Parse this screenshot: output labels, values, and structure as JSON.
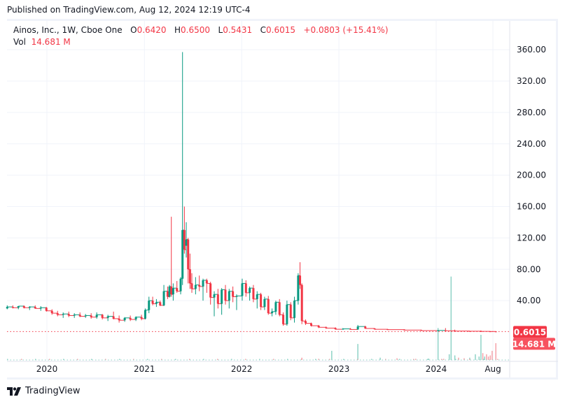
{
  "header": {
    "published": "Published on TradingView.com, Aug 12, 2024 12:19 UTC-4"
  },
  "legend": {
    "symbol": "Ainos, Inc., 1W, Cboe One",
    "o_label": "O",
    "o": "0.6420",
    "h_label": "H",
    "h": "0.6500",
    "l_label": "L",
    "l": "0.5431",
    "c_label": "C",
    "c": "0.6015",
    "change": "+0.0803 (+15.41%)",
    "vol_label": "Vol",
    "vol": "14.681 M"
  },
  "footer": {
    "logo_text": "TradingView"
  },
  "colors": {
    "up": "#089981",
    "down": "#f23645",
    "grid": "#f0f3fa",
    "last_price": "#f23645",
    "last_volume": "#f7525f"
  },
  "chart_data": {
    "type": "candlestick",
    "ylim": [
      0,
      380
    ],
    "y_ticks": [
      40,
      80,
      120,
      160,
      200,
      240,
      280,
      320,
      360
    ],
    "y_tick_labels": [
      "40.00",
      "80.00",
      "120.00",
      "160.00",
      "200.00",
      "240.00",
      "280.00",
      "320.00",
      "360.00"
    ],
    "x_ticks": [
      {
        "date": "2020-01-01",
        "label": "2020"
      },
      {
        "date": "2021-01-01",
        "label": "2021"
      },
      {
        "date": "2022-01-01",
        "label": "2022"
      },
      {
        "date": "2023-01-01",
        "label": "2023"
      },
      {
        "date": "2024-01-01",
        "label": "2024"
      },
      {
        "date": "2024-08-01",
        "label": "Aug"
      }
    ],
    "last_price": {
      "value": 0.6015,
      "label": "0.6015"
    },
    "last_volume": {
      "label": "14.681 M"
    },
    "grid": true,
    "candles_columns": [
      "date",
      "open",
      "high",
      "low",
      "close"
    ],
    "candles": [
      [
        "2019-08-05",
        30,
        34,
        29,
        32
      ],
      [
        "2019-08-26",
        32,
        34,
        30,
        31
      ],
      [
        "2019-09-16",
        31,
        33,
        29,
        33
      ],
      [
        "2019-10-07",
        33,
        34,
        30,
        31
      ],
      [
        "2019-10-28",
        31,
        33,
        28,
        32
      ],
      [
        "2019-11-18",
        32,
        34,
        30,
        30
      ],
      [
        "2019-12-09",
        30,
        33,
        27,
        31
      ],
      [
        "2019-12-30",
        31,
        32,
        26,
        27
      ],
      [
        "2020-01-20",
        27,
        29,
        22,
        24
      ],
      [
        "2020-02-10",
        24,
        27,
        20,
        22
      ],
      [
        "2020-03-02",
        22,
        25,
        18,
        23
      ],
      [
        "2020-03-23",
        23,
        26,
        19,
        21
      ],
      [
        "2020-04-13",
        21,
        24,
        18,
        22
      ],
      [
        "2020-05-04",
        22,
        25,
        19,
        20
      ],
      [
        "2020-05-25",
        20,
        23,
        18,
        21
      ],
      [
        "2020-06-15",
        21,
        24,
        17,
        19
      ],
      [
        "2020-07-06",
        19,
        25,
        17,
        22
      ],
      [
        "2020-07-27",
        22,
        23,
        16,
        18
      ],
      [
        "2020-08-17",
        18,
        22,
        14,
        20
      ],
      [
        "2020-09-07",
        20,
        26,
        16,
        17
      ],
      [
        "2020-09-28",
        17,
        21,
        12,
        15
      ],
      [
        "2020-10-19",
        15,
        19,
        13,
        18
      ],
      [
        "2020-11-09",
        18,
        21,
        14,
        16
      ],
      [
        "2020-11-30",
        16,
        20,
        14,
        19
      ],
      [
        "2020-12-21",
        19,
        22,
        15,
        17
      ],
      [
        "2021-01-04",
        17,
        30,
        16,
        28
      ],
      [
        "2021-01-18",
        28,
        45,
        24,
        40
      ],
      [
        "2021-02-01",
        40,
        45,
        34,
        36
      ],
      [
        "2021-02-15",
        36,
        42,
        32,
        38
      ],
      [
        "2021-03-01",
        38,
        40,
        33,
        34
      ],
      [
        "2021-03-15",
        34,
        60,
        33,
        52
      ],
      [
        "2021-03-29",
        52,
        58,
        42,
        45
      ],
      [
        "2021-04-05",
        45,
        60,
        44,
        58
      ],
      [
        "2021-04-12",
        58,
        147,
        45,
        48
      ],
      [
        "2021-04-19",
        48,
        62,
        40,
        56
      ],
      [
        "2021-05-03",
        56,
        65,
        50,
        52
      ],
      [
        "2021-05-17",
        52,
        70,
        48,
        68
      ],
      [
        "2021-05-24",
        68,
        357,
        60,
        130
      ],
      [
        "2021-05-31",
        130,
        160,
        100,
        105
      ],
      [
        "2021-06-07",
        110,
        140,
        95,
        118
      ],
      [
        "2021-06-14",
        118,
        120,
        62,
        80
      ],
      [
        "2021-06-21",
        80,
        100,
        55,
        62
      ],
      [
        "2021-06-28",
        62,
        75,
        50,
        55
      ],
      [
        "2021-07-12",
        55,
        70,
        48,
        60
      ],
      [
        "2021-07-26",
        60,
        72,
        52,
        58
      ],
      [
        "2021-08-09",
        58,
        68,
        40,
        66
      ],
      [
        "2021-08-23",
        66,
        68,
        50,
        62
      ],
      [
        "2021-09-06",
        62,
        64,
        35,
        44
      ],
      [
        "2021-09-20",
        44,
        52,
        20,
        48
      ],
      [
        "2021-10-04",
        48,
        55,
        30,
        36
      ],
      [
        "2021-10-18",
        36,
        56,
        22,
        54
      ],
      [
        "2021-11-01",
        54,
        60,
        35,
        40
      ],
      [
        "2021-11-15",
        40,
        55,
        30,
        52
      ],
      [
        "2021-11-29",
        52,
        58,
        38,
        45
      ],
      [
        "2021-12-13",
        45,
        48,
        28,
        46
      ],
      [
        "2022-01-03",
        46,
        68,
        40,
        62
      ],
      [
        "2022-01-17",
        62,
        66,
        45,
        50
      ],
      [
        "2022-01-31",
        50,
        58,
        40,
        56
      ],
      [
        "2022-02-14",
        56,
        60,
        38,
        42
      ],
      [
        "2022-02-28",
        42,
        52,
        30,
        48
      ],
      [
        "2022-03-14",
        48,
        50,
        28,
        32
      ],
      [
        "2022-03-28",
        32,
        45,
        28,
        42
      ],
      [
        "2022-04-11",
        42,
        46,
        22,
        24
      ],
      [
        "2022-04-25",
        24,
        30,
        20,
        26
      ],
      [
        "2022-05-09",
        26,
        40,
        22,
        38
      ],
      [
        "2022-05-23",
        38,
        42,
        20,
        22
      ],
      [
        "2022-06-06",
        22,
        25,
        8,
        10
      ],
      [
        "2022-06-20",
        10,
        40,
        8,
        35
      ],
      [
        "2022-07-04",
        35,
        38,
        15,
        18
      ],
      [
        "2022-07-18",
        18,
        45,
        12,
        40
      ],
      [
        "2022-08-01",
        40,
        75,
        35,
        72
      ],
      [
        "2022-08-08",
        72,
        89,
        55,
        60
      ],
      [
        "2022-08-15",
        60,
        62,
        10,
        14
      ],
      [
        "2022-08-29",
        14,
        16,
        9,
        11
      ],
      [
        "2022-09-19",
        11,
        12,
        7,
        8
      ],
      [
        "2022-10-17",
        8,
        9,
        5,
        6
      ],
      [
        "2022-11-14",
        6,
        7,
        4,
        5
      ],
      [
        "2022-12-19",
        5,
        6,
        3,
        3.5
      ],
      [
        "2023-01-16",
        3.5,
        5,
        3,
        4
      ],
      [
        "2023-02-13",
        4,
        5,
        3,
        3.2
      ],
      [
        "2023-03-13",
        3.2,
        9,
        3,
        7
      ],
      [
        "2023-04-10",
        7,
        8,
        4,
        4.5
      ],
      [
        "2023-05-15",
        4.5,
        5,
        3,
        3.5
      ],
      [
        "2023-07-03",
        3.5,
        4,
        2.5,
        3
      ],
      [
        "2023-09-04",
        3,
        3.5,
        2,
        2.5
      ],
      [
        "2023-11-06",
        2.5,
        3,
        1.5,
        1.8
      ],
      [
        "2024-01-08",
        1.8,
        2.5,
        1.2,
        2
      ],
      [
        "2024-02-05",
        2,
        5,
        1.5,
        1.6
      ],
      [
        "2024-03-11",
        1.6,
        3,
        1,
        1.2
      ],
      [
        "2024-05-06",
        1.2,
        1.5,
        0.8,
        1
      ],
      [
        "2024-06-17",
        1,
        2,
        0.7,
        0.8
      ],
      [
        "2024-07-22",
        0.8,
        1,
        0.5,
        0.642
      ],
      [
        "2024-08-12",
        0.642,
        0.65,
        0.5431,
        0.6015
      ]
    ],
    "volume_unit": "M",
    "volume_columns": [
      "date",
      "volume",
      "direction"
    ],
    "volume": [
      [
        "2022-08-15",
        2,
        "down"
      ],
      [
        "2022-10-17",
        1,
        "down"
      ],
      [
        "2022-12-05",
        8,
        "up"
      ],
      [
        "2023-03-13",
        14,
        "up"
      ],
      [
        "2023-06-05",
        2,
        "up"
      ],
      [
        "2023-08-07",
        1.5,
        "down"
      ],
      [
        "2023-10-16",
        1,
        "down"
      ],
      [
        "2023-12-04",
        1.2,
        "up"
      ],
      [
        "2024-01-08",
        28,
        "up"
      ],
      [
        "2024-01-29",
        1,
        "down"
      ],
      [
        "2024-02-19",
        5,
        "up"
      ],
      [
        "2024-02-26",
        73,
        "up"
      ],
      [
        "2024-03-11",
        4,
        "up"
      ],
      [
        "2024-03-25",
        2,
        "down"
      ],
      [
        "2024-04-15",
        1.5,
        "down"
      ],
      [
        "2024-05-06",
        2,
        "up"
      ],
      [
        "2024-05-27",
        5,
        "up"
      ],
      [
        "2024-06-10",
        3,
        "up"
      ],
      [
        "2024-06-17",
        22,
        "up"
      ],
      [
        "2024-06-24",
        6,
        "down"
      ],
      [
        "2024-07-01",
        3,
        "up"
      ],
      [
        "2024-07-08",
        5,
        "down"
      ],
      [
        "2024-07-15",
        3,
        "down"
      ],
      [
        "2024-07-22",
        4,
        "down"
      ],
      [
        "2024-07-29",
        8,
        "down"
      ],
      [
        "2024-08-12",
        14.681,
        "down"
      ]
    ]
  }
}
